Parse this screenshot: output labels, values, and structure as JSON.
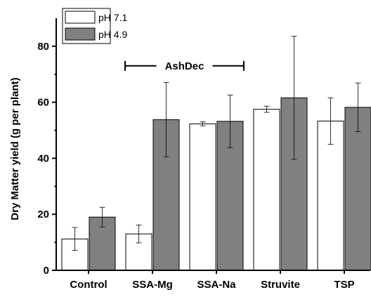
{
  "chart_data": {
    "type": "bar",
    "categories": [
      "Control",
      "SSA-Mg",
      "SSA-Na",
      "Struvite",
      "TSP"
    ],
    "series": [
      {
        "name": "pH 7.1",
        "color": "#ffffff",
        "values": [
          11.2,
          13.0,
          52.3,
          57.5,
          53.3
        ],
        "error_low": [
          7.1,
          9.8,
          51.6,
          56.4,
          45.0
        ],
        "error_high": [
          15.3,
          16.2,
          53.0,
          58.6,
          61.6
        ]
      },
      {
        "name": "pH 4.9",
        "color": "#808080",
        "values": [
          19.0,
          53.8,
          53.2,
          61.6,
          58.2
        ],
        "error_low": [
          15.5,
          40.5,
          43.8,
          39.6,
          49.5
        ],
        "error_high": [
          22.5,
          67.1,
          62.6,
          83.6,
          66.9
        ]
      }
    ],
    "title": "",
    "xlabel": "",
    "ylabel": "Dry Matter yield (g per plant)",
    "ylim": [
      0,
      90
    ],
    "yticks": [
      0,
      20,
      40,
      60,
      80
    ],
    "legend_position": "top-left",
    "grid": false,
    "annotation": {
      "text": "AshDec",
      "spans_categories": [
        "SSA-Mg",
        "SSA-Na"
      ],
      "y": 73
    }
  }
}
